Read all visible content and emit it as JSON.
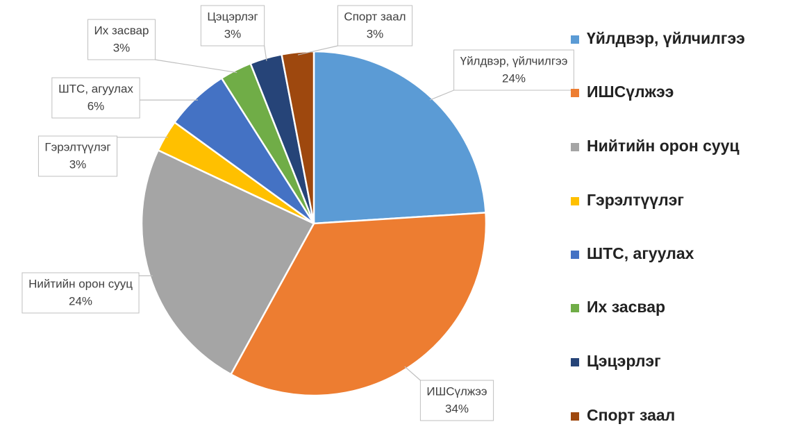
{
  "chart_data": {
    "type": "pie",
    "categories": [
      "Үйлдвэр, үйлчилгээ",
      "ИШСүлжээ",
      "Нийтийн орон сууц",
      "Гэрэлтүүлэг",
      "ШТС, агуулах",
      "Их засвар",
      "Цэцэрлэг",
      "Спорт заал"
    ],
    "values": [
      24,
      34,
      24,
      3,
      6,
      3,
      3,
      3
    ],
    "value_labels": [
      "24%",
      "34%",
      "24%",
      "3%",
      "6%",
      "3%",
      "3%",
      "3%"
    ],
    "colors": [
      "#5b9bd5",
      "#ed7d31",
      "#a5a5a5",
      "#ffc000",
      "#4472c4",
      "#70ad47",
      "#264478",
      "#9e480e"
    ],
    "legend": "right"
  }
}
